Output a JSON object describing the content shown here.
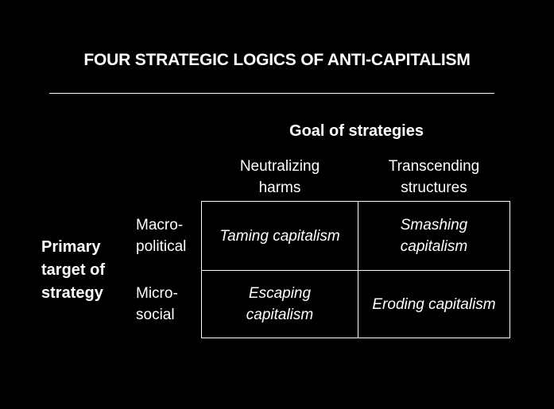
{
  "title": "FOUR STRATEGIC LOGICS OF ANTI-CAPITALISM",
  "goal": {
    "heading": "Goal of strategies",
    "columns": [
      {
        "line1": "Neutralizing",
        "line2": "harms"
      },
      {
        "line1": "Transcending",
        "line2": "structures"
      }
    ]
  },
  "target": {
    "line1": "Primary",
    "line2": "target of",
    "line3": "strategy",
    "rows": [
      {
        "line1": "Macro-",
        "line2": "political"
      },
      {
        "line1": "Micro-",
        "line2": "social"
      }
    ]
  },
  "cells": {
    "macro_neutralizing": {
      "line1": "Taming capitalism"
    },
    "macro_transcending": {
      "line1": "Smashing",
      "line2": "capitalism"
    },
    "micro_neutralizing": {
      "line1": "Escaping",
      "line2": "capitalism"
    },
    "micro_transcending": {
      "line1": "Eroding capitalism"
    }
  },
  "colors": {
    "background": "#000000",
    "text": "#ffffff"
  }
}
